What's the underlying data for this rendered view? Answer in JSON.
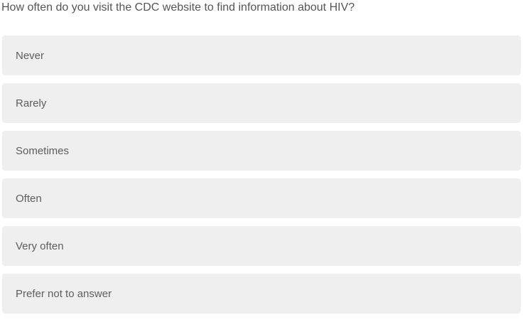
{
  "question": {
    "text": "How often do you visit the CDC website to find information about HIV?"
  },
  "options": [
    {
      "label": "Never"
    },
    {
      "label": "Rarely"
    },
    {
      "label": "Sometimes"
    },
    {
      "label": "Often"
    },
    {
      "label": "Very often"
    },
    {
      "label": "Prefer not to answer"
    }
  ],
  "colors": {
    "option_background": "#efefef",
    "question_text": "#555555",
    "option_text": "#5d5d5d",
    "page_background": "#ffffff"
  }
}
